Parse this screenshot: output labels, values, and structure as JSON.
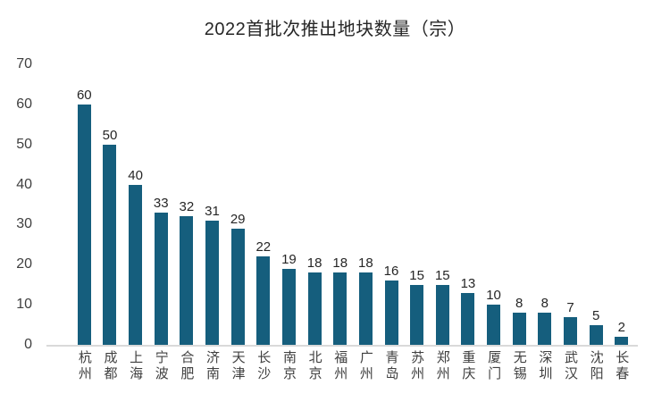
{
  "chart_data": {
    "type": "bar",
    "title": "2022首批次推出地块数量（宗）",
    "categories": [
      "杭州",
      "成都",
      "上海",
      "宁波",
      "合肥",
      "济南",
      "天津",
      "长沙",
      "南京",
      "北京",
      "福州",
      "广州",
      "青岛",
      "苏州",
      "郑州",
      "重庆",
      "厦门",
      "无锡",
      "深圳",
      "武汉",
      "沈阳",
      "长春"
    ],
    "values": [
      60,
      50,
      40,
      33,
      32,
      31,
      29,
      22,
      19,
      18,
      18,
      18,
      16,
      15,
      15,
      13,
      10,
      8,
      8,
      7,
      5,
      2
    ],
    "xlabel": "",
    "ylabel": "",
    "ylim": [
      0,
      70
    ],
    "yticks": [
      0,
      10,
      20,
      30,
      40,
      50,
      60,
      70
    ],
    "grid": false,
    "legend": false,
    "data_labels": true,
    "colors": {
      "bar": "#155e7d",
      "axis_line": "#d9d9d9",
      "title_text": "#262626",
      "tick_text": "#404040",
      "value_label_text": "#262626",
      "background": "#ffffff"
    }
  }
}
